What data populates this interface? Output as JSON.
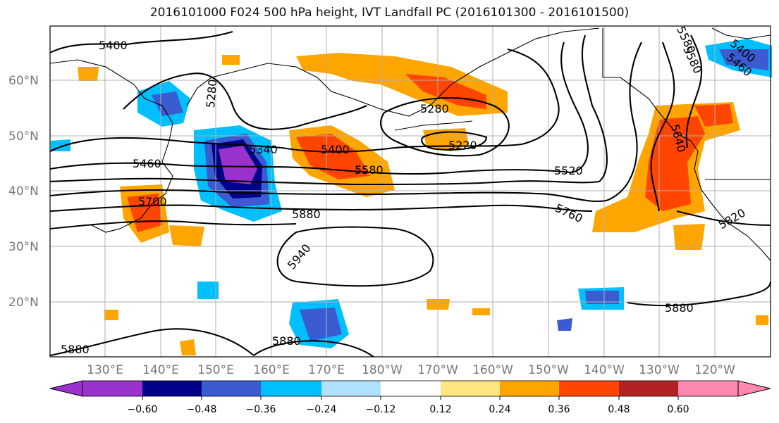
{
  "title": "2016101000 F024 500 hPa height, IVT Landfall PC (2016101300 - 2016101500)",
  "lat_labels": [
    "60°N",
    "50°N",
    "40°N",
    "30°N",
    "20°N"
  ],
  "lon_labels": [
    "130°E",
    "140°E",
    "150°E",
    "160°E",
    "170°E",
    "180°W",
    "170°W",
    "160°W",
    "150°W",
    "140°W",
    "130°W",
    "120°W"
  ],
  "contour_labels": [
    "5400",
    "5280",
    "5340",
    "5400",
    "5460",
    "5580",
    "5700",
    "5880",
    "5940",
    "5280",
    "5220",
    "5520",
    "5760",
    "5820",
    "5880",
    "5880",
    "5880",
    "5400",
    "5460",
    "5580",
    "5580",
    "5640"
  ],
  "colorbar": {
    "ticks": [
      "−0.60",
      "−0.48",
      "−0.36",
      "−0.24",
      "−0.12",
      "0.12",
      "0.24",
      "0.36",
      "0.48",
      "0.60"
    ],
    "colors": [
      "#9932cc",
      "#00008b",
      "#3b5bd0",
      "#00bfff",
      "#b0e2ff",
      "#ffffff",
      "#ffe680",
      "#ffa500",
      "#ff4500",
      "#b22222",
      "#ff88b0"
    ]
  }
}
